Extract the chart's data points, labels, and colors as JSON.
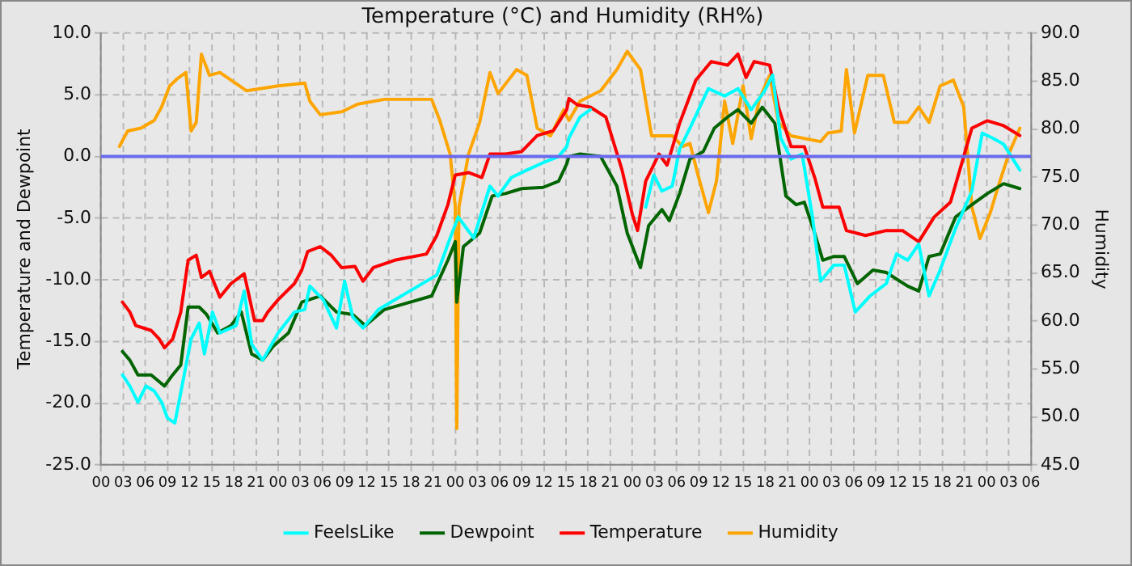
{
  "chart_data": {
    "type": "line",
    "title": "Temperature (°C) and Humidity (RH%)",
    "ylabel": "Temperature and Dewpoint",
    "y2label": "Humidity",
    "xlim": [
      0,
      126
    ],
    "xticks": [
      {
        "value": 0,
        "label": "00"
      },
      {
        "value": 3,
        "label": "03"
      },
      {
        "value": 6,
        "label": "06"
      },
      {
        "value": 9,
        "label": "09"
      },
      {
        "value": 12,
        "label": "12"
      },
      {
        "value": 15,
        "label": "15"
      },
      {
        "value": 18,
        "label": "18"
      },
      {
        "value": 21,
        "label": "21"
      },
      {
        "value": 24,
        "label": "00"
      },
      {
        "value": 27,
        "label": "03"
      },
      {
        "value": 30,
        "label": "06"
      },
      {
        "value": 33,
        "label": "09"
      },
      {
        "value": 36,
        "label": "12"
      },
      {
        "value": 39,
        "label": "15"
      },
      {
        "value": 42,
        "label": "18"
      },
      {
        "value": 45,
        "label": "21"
      },
      {
        "value": 48,
        "label": "00"
      },
      {
        "value": 51,
        "label": "03"
      },
      {
        "value": 54,
        "label": "06"
      },
      {
        "value": 57,
        "label": "09"
      },
      {
        "value": 60,
        "label": "12"
      },
      {
        "value": 63,
        "label": "15"
      },
      {
        "value": 66,
        "label": "18"
      },
      {
        "value": 69,
        "label": "21"
      },
      {
        "value": 72,
        "label": "00"
      },
      {
        "value": 75,
        "label": "03"
      },
      {
        "value": 78,
        "label": "06"
      },
      {
        "value": 81,
        "label": "09"
      },
      {
        "value": 84,
        "label": "12"
      },
      {
        "value": 87,
        "label": "15"
      },
      {
        "value": 90,
        "label": "18"
      },
      {
        "value": 93,
        "label": "21"
      },
      {
        "value": 96,
        "label": "00"
      },
      {
        "value": 99,
        "label": "03"
      },
      {
        "value": 102,
        "label": "06"
      },
      {
        "value": 105,
        "label": "09"
      },
      {
        "value": 108,
        "label": "12"
      },
      {
        "value": 111,
        "label": "15"
      },
      {
        "value": 114,
        "label": "18"
      },
      {
        "value": 117,
        "label": "21"
      },
      {
        "value": 120,
        "label": "00"
      },
      {
        "value": 123,
        "label": "03"
      },
      {
        "value": 126,
        "label": "06"
      }
    ],
    "ylim": [
      -25,
      10
    ],
    "yticks": [
      {
        "value": -25,
        "label": "-25.0"
      },
      {
        "value": -20,
        "label": "-20.0"
      },
      {
        "value": -15,
        "label": "-15.0"
      },
      {
        "value": -10,
        "label": "-10.0"
      },
      {
        "value": -5,
        "label": "-5.0"
      },
      {
        "value": 0,
        "label": "0.0"
      },
      {
        "value": 5,
        "label": "5.0"
      },
      {
        "value": 10,
        "label": "10.0"
      }
    ],
    "y2lim": [
      45,
      90
    ],
    "y2ticks": [
      {
        "value": 45,
        "label": "45.0"
      },
      {
        "value": 50,
        "label": "50.0"
      },
      {
        "value": 55,
        "label": "55.0"
      },
      {
        "value": 60,
        "label": "60.0"
      },
      {
        "value": 65,
        "label": "65.0"
      },
      {
        "value": 70,
        "label": "70.0"
      },
      {
        "value": 75,
        "label": "75.0"
      },
      {
        "value": 80,
        "label": "80.0"
      },
      {
        "value": 85,
        "label": "85.0"
      },
      {
        "value": 90,
        "label": "90.0"
      }
    ],
    "grid": true,
    "legend": "bottom",
    "marker": "none",
    "line_style": "solid",
    "ref_lines": [
      {
        "axis": "y",
        "value": 0,
        "color": "#6a6aee"
      }
    ],
    "series": [
      {
        "name": "FeelsLike",
        "color": "#00ffff",
        "x": [
          2.9,
          3.9,
          5.0,
          6.1,
          7.2,
          8.2,
          9.0,
          10.0,
          11.1,
          12.2,
          13.3,
          14.0,
          15.1,
          16.1,
          18.3,
          19.4,
          20.4,
          21.9,
          24.0,
          26.2,
          27.6,
          28.3,
          30.1,
          31.9,
          33.0,
          34.1,
          35.5,
          37.6,
          45.5,
          47.0,
          48.4,
          49.5,
          50.5,
          52.7,
          53.8,
          55.6,
          57.7,
          59.9,
          62.0,
          63.1,
          63.4,
          64.9,
          66.3,
          70.0,
          73.8,
          74.9,
          76.0,
          77.4,
          78.4,
          79.8,
          82.3,
          84.5,
          86.3,
          88.1,
          89.9,
          91.0,
          92.1,
          93.5,
          95.0,
          96.4,
          97.5,
          99.3,
          100.7,
          102.2,
          104.2,
          106.4,
          107.8,
          109.3,
          110.8,
          112.2,
          113.7,
          115.8,
          118.0,
          119.4,
          120.8,
          122.3,
          124.5
        ],
        "values": [
          -17.7,
          -18.6,
          -19.9,
          -18.6,
          -19.0,
          -19.9,
          -21.2,
          -21.6,
          -18.2,
          -14.8,
          -13.5,
          -16.0,
          -12.6,
          -14.3,
          -13.7,
          -10.9,
          -15.2,
          -16.5,
          -14.3,
          -12.6,
          -12.4,
          -10.5,
          -11.6,
          -13.9,
          -10.1,
          -13.0,
          -13.9,
          -12.4,
          -9.6,
          -7.1,
          -4.9,
          -5.8,
          -6.6,
          -2.4,
          -3.2,
          -1.7,
          -1.1,
          -0.5,
          0.0,
          0.8,
          1.5,
          3.2,
          3.8,
          null,
          -4.1,
          -1.5,
          -2.8,
          -2.4,
          0.6,
          2.3,
          5.5,
          4.9,
          5.5,
          3.8,
          5.3,
          6.6,
          1.5,
          -0.2,
          0.2,
          -4.9,
          -10.1,
          -8.8,
          -8.8,
          -12.6,
          -11.3,
          -10.3,
          -7.9,
          -8.4,
          -7.1,
          -11.3,
          -9.2,
          -5.8,
          -2.8,
          1.9,
          1.5,
          1.0,
          -1.1
        ]
      },
      {
        "name": "Dewpoint",
        "color": "#006400",
        "x": [
          2.9,
          3.9,
          5.0,
          6.8,
          8.6,
          9.7,
          10.8,
          11.8,
          13.3,
          14.3,
          15.8,
          17.6,
          19.0,
          20.4,
          21.9,
          23.3,
          25.4,
          27.2,
          29.7,
          31.9,
          34.1,
          35.8,
          38.4,
          41.9,
          44.8,
          47.0,
          48.0,
          48.2,
          49.1,
          51.3,
          53.0,
          54.8,
          57.0,
          59.9,
          62.0,
          63.1,
          63.4,
          64.9,
          67.7,
          69.9,
          71.3,
          73.1,
          74.2,
          76.0,
          77.0,
          78.4,
          79.8,
          81.6,
          83.1,
          84.9,
          86.3,
          88.1,
          89.6,
          91.3,
          92.8,
          94.2,
          95.3,
          96.7,
          97.8,
          99.3,
          100.7,
          102.5,
          104.6,
          106.4,
          109.3,
          110.8,
          112.2,
          113.7,
          115.8,
          118.0,
          120.1,
          122.3,
          124.5
        ],
        "values": [
          -15.8,
          -16.5,
          -17.7,
          -17.7,
          -18.6,
          -17.7,
          -16.9,
          -12.2,
          -12.2,
          -12.8,
          -14.3,
          -13.7,
          -12.6,
          -16.0,
          -16.5,
          -15.4,
          -14.3,
          -11.8,
          -11.3,
          -12.6,
          -12.8,
          -13.7,
          -12.4,
          -11.8,
          -11.3,
          -8.4,
          -6.9,
          -11.8,
          -7.3,
          -6.2,
          -3.2,
          -3.0,
          -2.6,
          -2.5,
          -2.0,
          -0.6,
          0.0,
          0.2,
          0.0,
          -2.4,
          -6.2,
          -9.0,
          -5.6,
          -4.3,
          -5.2,
          -3.0,
          -0.2,
          0.4,
          2.3,
          3.2,
          3.8,
          2.7,
          4.0,
          2.7,
          -3.2,
          -3.9,
          -3.7,
          -6.2,
          -8.4,
          -8.1,
          -8.1,
          -10.3,
          -9.2,
          -9.4,
          -10.5,
          -10.9,
          -8.1,
          -7.9,
          -4.9,
          -3.9,
          -3.0,
          -2.2,
          -2.6
        ]
      },
      {
        "name": "Temperature",
        "color": "#ff0000",
        "x": [
          2.9,
          3.9,
          4.7,
          6.8,
          7.9,
          8.6,
          9.7,
          10.8,
          11.8,
          12.9,
          13.6,
          14.7,
          16.1,
          17.6,
          19.4,
          20.8,
          21.9,
          22.6,
          24.0,
          26.2,
          27.2,
          28.0,
          29.7,
          31.2,
          32.6,
          34.4,
          35.5,
          36.9,
          39.8,
          44.1,
          45.5,
          47.0,
          48.0,
          49.8,
          51.6,
          52.7,
          54.8,
          57.0,
          59.1,
          61.3,
          63.1,
          63.4,
          64.5,
          66.3,
          68.4,
          70.6,
          72.0,
          72.7,
          73.8,
          75.6,
          76.7,
          78.4,
          80.6,
          82.7,
          84.9,
          86.3,
          87.4,
          88.5,
          90.6,
          91.8,
          93.5,
          95.3,
          96.7,
          97.8,
          100.0,
          101.0,
          103.6,
          106.4,
          108.6,
          110.8,
          112.9,
          115.1,
          116.8,
          118.0,
          120.1,
          122.3,
          124.5
        ],
        "values": [
          -11.8,
          -12.6,
          -13.7,
          -14.1,
          -14.8,
          -15.5,
          -14.8,
          -12.6,
          -8.4,
          -8.0,
          -9.8,
          -9.3,
          -11.4,
          -10.3,
          -9.5,
          -13.3,
          -13.3,
          -12.6,
          -11.6,
          -10.3,
          -9.2,
          -7.7,
          -7.3,
          -8.0,
          -9.0,
          -8.9,
          -10.1,
          -9.0,
          -8.4,
          -7.9,
          -6.4,
          -3.9,
          -1.5,
          -1.3,
          -1.7,
          0.2,
          0.2,
          0.4,
          1.7,
          2.1,
          3.8,
          4.7,
          4.2,
          4.0,
          3.2,
          -1.1,
          -4.7,
          -6.0,
          -2.0,
          0.2,
          -0.7,
          2.7,
          6.2,
          7.7,
          7.4,
          8.3,
          6.4,
          7.7,
          7.4,
          4.0,
          0.8,
          0.8,
          -1.7,
          -4.1,
          -4.1,
          -6.0,
          -6.4,
          -6.0,
          -6.0,
          -6.9,
          -4.9,
          -3.7,
          -0.2,
          2.3,
          2.9,
          2.5,
          1.7
        ]
      },
      {
        "name": "Humidity",
        "color": "#ffa500",
        "axis": "y2",
        "x": [
          2.5,
          3.6,
          5.4,
          7.2,
          8.2,
          9.3,
          10.4,
          11.5,
          12.2,
          12.9,
          13.6,
          14.7,
          16.1,
          19.7,
          24.0,
          27.6,
          28.3,
          29.7,
          32.6,
          34.8,
          38.4,
          44.8,
          45.9,
          47.3,
          48.0,
          48.2,
          48.5,
          49.8,
          51.3,
          52.7,
          53.8,
          55.2,
          56.3,
          57.7,
          59.1,
          60.9,
          62.7,
          63.4,
          64.9,
          67.7,
          69.9,
          71.3,
          73.1,
          74.6,
          77.4,
          78.8,
          79.8,
          80.9,
          82.3,
          83.4,
          84.5,
          85.6,
          87.0,
          88.1,
          89.2,
          90.6,
          91.8,
          93.5,
          97.5,
          98.5,
          100.3,
          101.0,
          102.1,
          103.9,
          106.0,
          107.5,
          109.3,
          110.8,
          112.2,
          113.7,
          115.5,
          116.9,
          118.0,
          119.1,
          120.5,
          121.6,
          123.0,
          124.5
        ],
        "values": [
          78.2,
          79.8,
          80.1,
          80.9,
          82.3,
          84.5,
          85.3,
          85.9,
          79.8,
          80.7,
          87.8,
          85.6,
          85.9,
          84.0,
          84.5,
          84.8,
          82.9,
          81.5,
          81.8,
          82.6,
          83.1,
          83.1,
          80.9,
          77.4,
          71.9,
          48.8,
          71.9,
          77.4,
          80.7,
          85.9,
          83.7,
          85.1,
          86.2,
          85.6,
          80.1,
          79.3,
          82.0,
          80.9,
          82.9,
          84.0,
          86.2,
          88.1,
          86.2,
          79.3,
          79.3,
          78.2,
          78.5,
          75.2,
          71.3,
          74.6,
          82.9,
          78.5,
          84.5,
          79.0,
          83.1,
          85.6,
          80.7,
          79.3,
          78.7,
          79.6,
          79.8,
          86.2,
          79.6,
          85.6,
          85.6,
          80.7,
          80.7,
          82.3,
          80.7,
          84.5,
          85.1,
          82.3,
          71.9,
          68.6,
          71.3,
          74.1,
          77.4,
          80.1
        ]
      }
    ]
  }
}
